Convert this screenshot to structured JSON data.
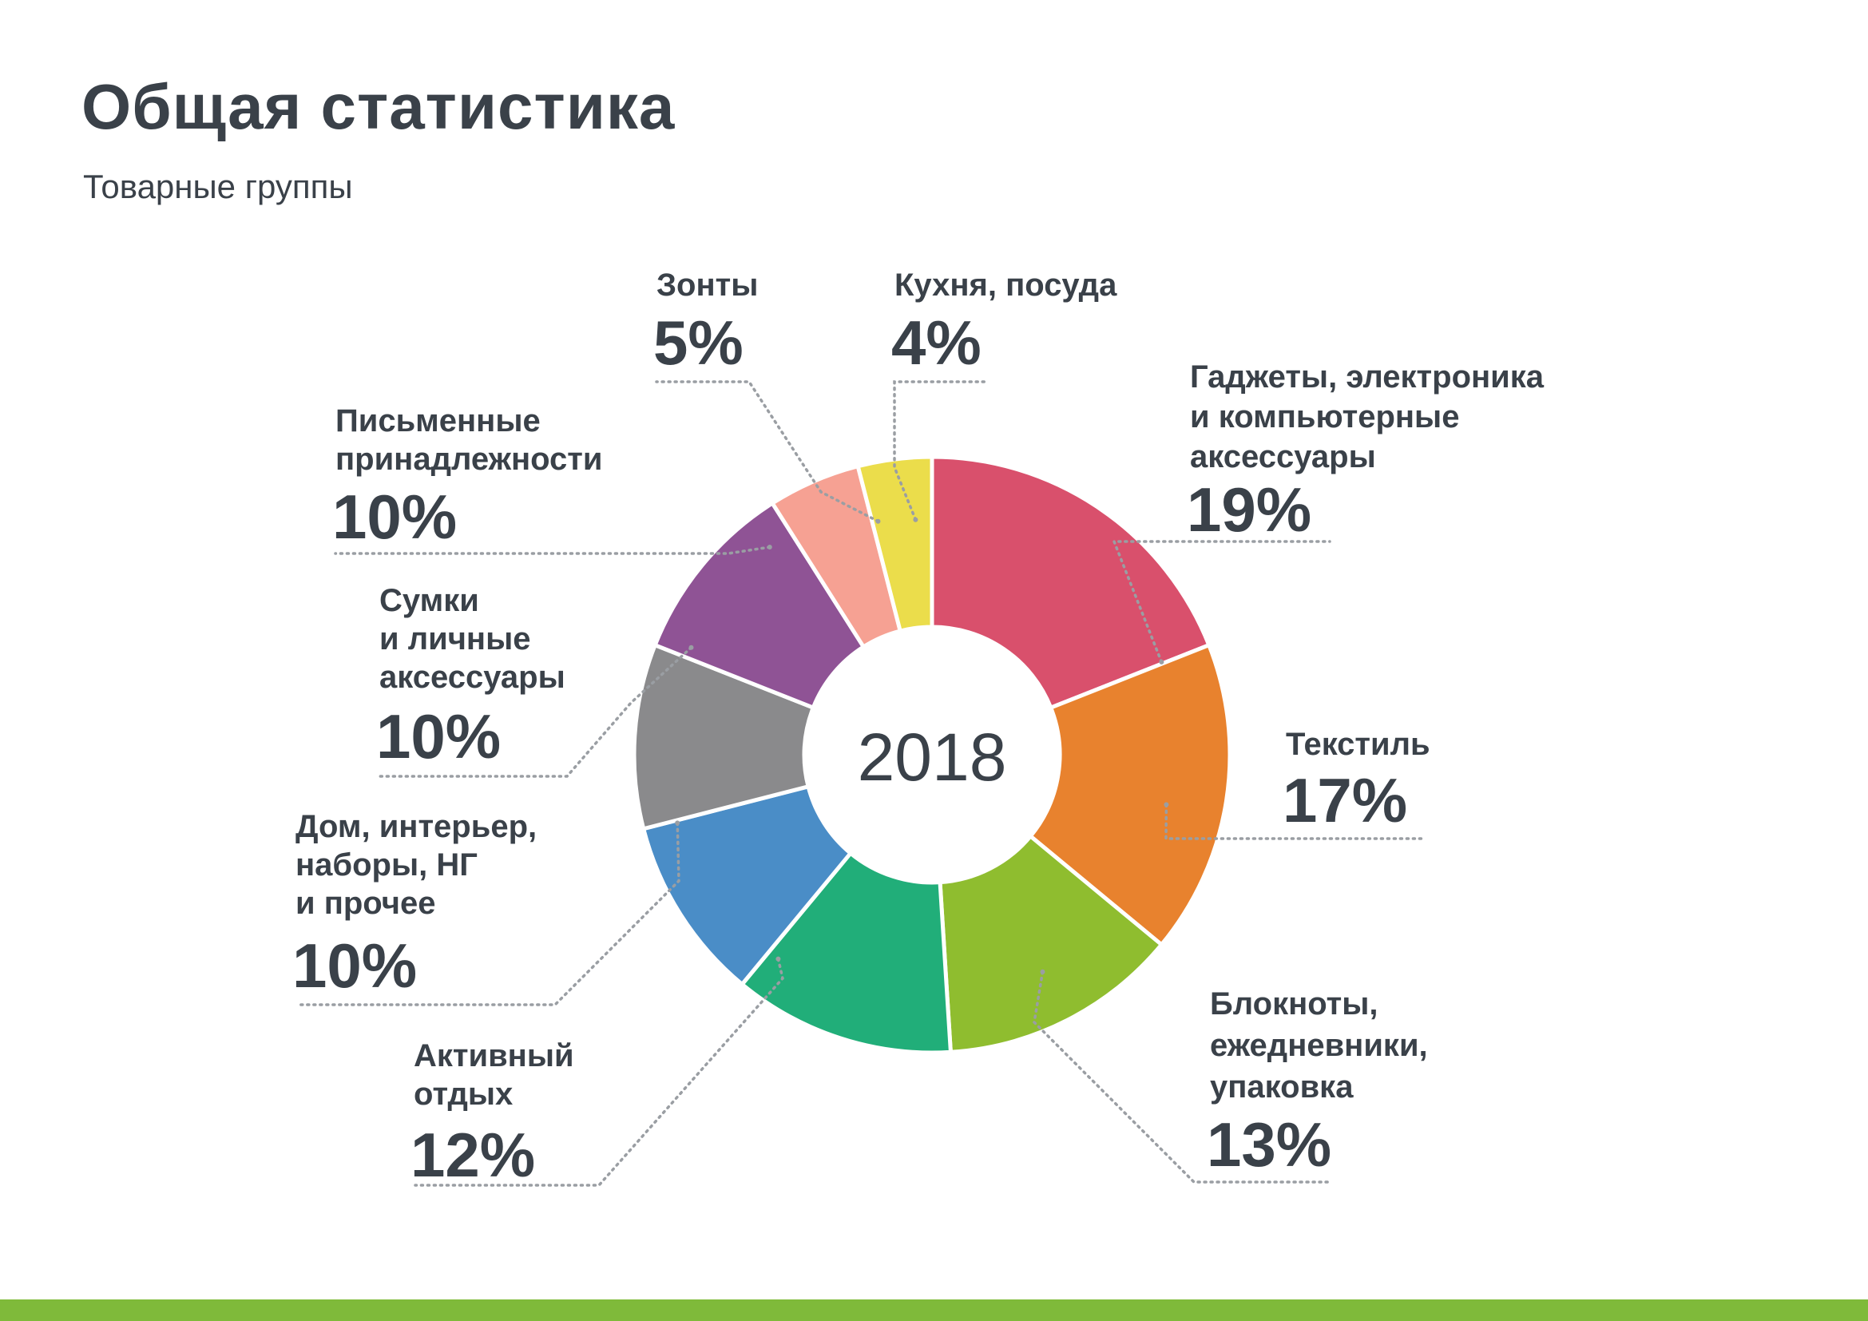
{
  "header": {
    "title": "Общая статистика",
    "subtitle": "Товарные группы"
  },
  "accent_color": "#7fba3a",
  "chart_data": {
    "type": "pie",
    "title": "Общая статистика",
    "subtitle": "Товарные группы",
    "center_label": "2018",
    "unit": "%",
    "slices": [
      {
        "label_lines": [
          "Гаджеты, электроника",
          "и компьютерные",
          "аксессуары"
        ],
        "value": 19,
        "value_label": "19%",
        "color": "#d9506c"
      },
      {
        "label_lines": [
          "Текстиль"
        ],
        "value": 17,
        "value_label": "17%",
        "color": "#e8822e"
      },
      {
        "label_lines": [
          "Блокноты,",
          "ежедневники,",
          "упаковка"
        ],
        "value": 13,
        "value_label": "13%",
        "color": "#8fbd2f"
      },
      {
        "label_lines": [
          "Активный",
          "отдых"
        ],
        "value": 12,
        "value_label": "12%",
        "color": "#21ae79"
      },
      {
        "label_lines": [
          "Дом, интерьер,",
          "наборы, НГ",
          "и прочее"
        ],
        "value": 10,
        "value_label": "10%",
        "color": "#4a8dc7"
      },
      {
        "label_lines": [
          "Сумки",
          "и личные",
          "аксессуары"
        ],
        "value": 10,
        "value_label": "10%",
        "color": "#8a8a8c"
      },
      {
        "label_lines": [
          "Письменные",
          "принадлежности"
        ],
        "value": 10,
        "value_label": "10%",
        "color": "#8f5395"
      },
      {
        "label_lines": [
          "Зонты"
        ],
        "value": 5,
        "value_label": "5%",
        "color": "#f6a193"
      },
      {
        "label_lines": [
          "Кухня, посуда"
        ],
        "value": 4,
        "value_label": "4%",
        "color": "#ebdd4b"
      }
    ]
  }
}
